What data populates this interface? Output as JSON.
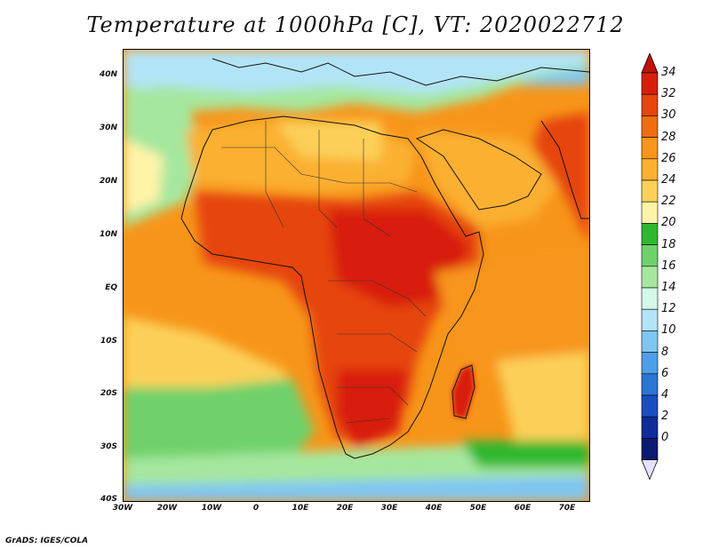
{
  "title": "Temperature at 1000hPa [C], VT: 2020022712",
  "footer": "GrADS: IGES/COLA",
  "map": {
    "lon_range": [
      -30,
      75
    ],
    "lat_range": [
      -40,
      45
    ],
    "lon_ticks": [
      "30W",
      "20W",
      "10W",
      "0",
      "10E",
      "20E",
      "30E",
      "40E",
      "50E",
      "60E",
      "70E"
    ],
    "lat_ticks": [
      "40N",
      "30N",
      "20N",
      "10N",
      "EQ",
      "10S",
      "20S",
      "30S",
      "40S"
    ]
  },
  "colorbar": {
    "labels": [
      "34",
      "32",
      "30",
      "28",
      "26",
      "24",
      "22",
      "20",
      "18",
      "16",
      "14",
      "12",
      "10",
      "8",
      "6",
      "4",
      "2",
      "0"
    ],
    "colors_top_down": [
      "#d81e0b",
      "#e6450f",
      "#f06e12",
      "#f7951a",
      "#fbb030",
      "#fcd058",
      "#fff3a8",
      "#2fb82f",
      "#6fd16a",
      "#a5e79e",
      "#d5f8e9",
      "#b2e4f8",
      "#7fc6f3",
      "#4e9ee8",
      "#2c74d6",
      "#1a4ec0",
      "#0e2c9a",
      "#0a1a70"
    ],
    "over_color": "#c0110a",
    "under_color": "#e5e2ff"
  }
}
